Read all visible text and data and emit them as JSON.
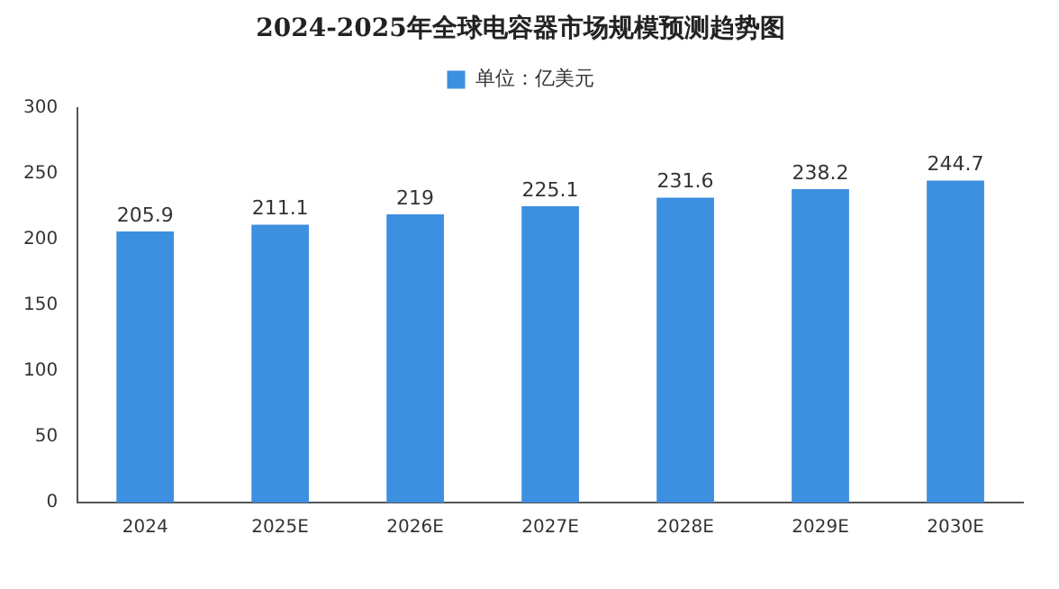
{
  "chart_data": {
    "type": "bar",
    "title": "2024-2025年全球电容器市场规模预测趋势图",
    "categories": [
      "2024",
      "2025E",
      "2026E",
      "2027E",
      "2028E",
      "2029E",
      "2030E"
    ],
    "series": [
      {
        "name": "单位：亿美元",
        "color": "#3d8fe0",
        "values": [
          205.9,
          211.1,
          219,
          225.1,
          231.6,
          238.2,
          244.7
        ]
      }
    ],
    "ylim": [
      0,
      300
    ],
    "yticks": [
      0,
      50,
      100,
      150,
      200,
      250,
      300
    ],
    "grid": false,
    "legend": "top",
    "data_labels": true
  }
}
